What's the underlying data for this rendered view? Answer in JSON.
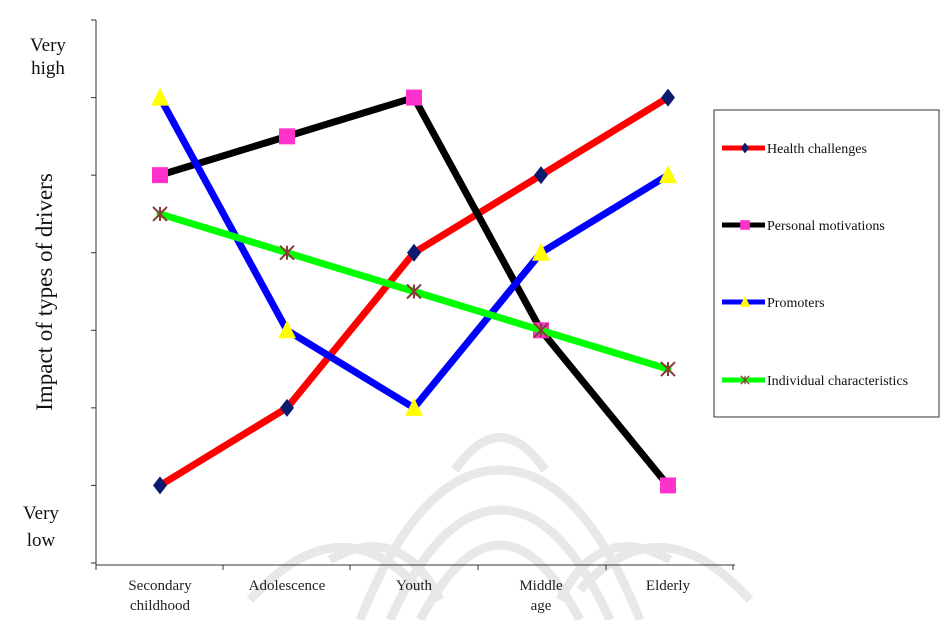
{
  "chart_data": {
    "type": "line",
    "title": "",
    "xlabel": "",
    "ylabel": "Impact of types of drivers",
    "y_top_label": "Very high",
    "y_bottom_label": "Very low",
    "categories": [
      "Secondary childhood",
      "Adolescence",
      "Youth",
      "Middle age",
      "Elderly"
    ],
    "ylim": [
      0,
      7
    ],
    "grid": false,
    "legend_placement": "right",
    "series": [
      {
        "name": "Health challenges",
        "values": [
          1,
          2,
          4,
          5,
          6
        ],
        "color": "#ff0000",
        "marker": "diamond",
        "marker_color": "#0a1a6e"
      },
      {
        "name": "Personal motivations",
        "values": [
          5,
          5.5,
          6,
          3,
          1
        ],
        "color": "#000000",
        "marker": "square",
        "marker_color": "#ff33cc"
      },
      {
        "name": "Promoters",
        "values": [
          6,
          3,
          2,
          4,
          5
        ],
        "color": "#0000ff",
        "marker": "triangle",
        "marker_color": "#ffff00"
      },
      {
        "name": "Individual characteristics",
        "values": [
          4.5,
          4,
          3.5,
          3,
          2.5
        ],
        "color": "#00ff00",
        "marker": "asterisk",
        "marker_color": "#8b3a3a"
      }
    ]
  }
}
